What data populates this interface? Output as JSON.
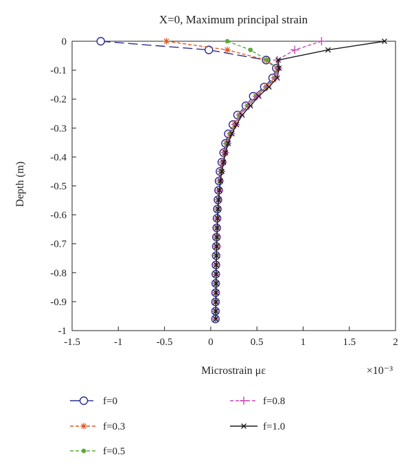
{
  "chart_data": {
    "type": "line",
    "title": "X=0, Maximum principal strain",
    "xlabel": "Microstrain με",
    "ylabel": "Depth (m)",
    "x_multiplier": "×10⁻³",
    "xlim": [
      -1.5,
      2
    ],
    "ylim": [
      -1,
      0
    ],
    "xticks": [
      -1.5,
      -1,
      -0.5,
      0,
      0.5,
      1,
      1.5,
      2
    ],
    "xtick_labels": [
      "-1.5",
      "-1",
      "-0.5",
      "0",
      "0.5",
      "1",
      "1.5",
      "2"
    ],
    "yticks": [
      0,
      -0.1,
      -0.2,
      -0.3,
      -0.4,
      -0.5,
      -0.6,
      -0.7,
      -0.8,
      -0.9,
      -1
    ],
    "ytick_labels": [
      "0",
      "-0.1",
      "-0.2",
      "-0.3",
      "-0.4",
      "-0.5",
      "-0.6",
      "-0.7",
      "-0.8",
      "-0.9",
      "-1"
    ],
    "grid": false,
    "legend_position": "bottom",
    "series": [
      {
        "name": "f=0",
        "color": "#2b2b8f",
        "marker": "circle",
        "dash": "long-dash",
        "points": [
          [
            -1.19,
            0
          ],
          [
            -0.02,
            -0.03
          ],
          [
            0.6,
            -0.065
          ],
          [
            0.71,
            -0.093
          ],
          [
            0.67,
            -0.127
          ],
          [
            0.58,
            -0.158
          ],
          [
            0.46,
            -0.19
          ],
          [
            0.38,
            -0.223
          ],
          [
            0.29,
            -0.255
          ],
          [
            0.24,
            -0.288
          ],
          [
            0.19,
            -0.32
          ],
          [
            0.16,
            -0.353
          ],
          [
            0.14,
            -0.385
          ],
          [
            0.12,
            -0.418
          ],
          [
            0.1,
            -0.45
          ],
          [
            0.09,
            -0.483
          ],
          [
            0.085,
            -0.515
          ],
          [
            0.078,
            -0.548
          ],
          [
            0.072,
            -0.58
          ],
          [
            0.068,
            -0.612
          ],
          [
            0.065,
            -0.645
          ],
          [
            0.062,
            -0.677
          ],
          [
            0.06,
            -0.709
          ],
          [
            0.058,
            -0.741
          ],
          [
            0.056,
            -0.773
          ],
          [
            0.055,
            -0.805
          ],
          [
            0.054,
            -0.837
          ],
          [
            0.053,
            -0.869
          ],
          [
            0.052,
            -0.901
          ],
          [
            0.052,
            -0.933
          ],
          [
            0.051,
            -0.96
          ]
        ]
      },
      {
        "name": "f=0.3",
        "color": "#e2571e",
        "marker": "star",
        "dash": "short-dash",
        "points": [
          [
            -0.48,
            0
          ],
          [
            0.18,
            -0.03
          ],
          [
            0.6,
            -0.065
          ],
          [
            0.72,
            -0.093
          ],
          [
            0.69,
            -0.127
          ],
          [
            0.6,
            -0.158
          ],
          [
            0.49,
            -0.19
          ],
          [
            0.4,
            -0.223
          ],
          [
            0.31,
            -0.255
          ],
          [
            0.26,
            -0.288
          ],
          [
            0.21,
            -0.32
          ],
          [
            0.17,
            -0.353
          ],
          [
            0.15,
            -0.385
          ],
          [
            0.13,
            -0.418
          ],
          [
            0.11,
            -0.45
          ],
          [
            0.1,
            -0.483
          ],
          [
            0.09,
            -0.515
          ],
          [
            0.082,
            -0.548
          ],
          [
            0.076,
            -0.58
          ],
          [
            0.071,
            -0.612
          ],
          [
            0.067,
            -0.645
          ],
          [
            0.064,
            -0.677
          ],
          [
            0.062,
            -0.709
          ],
          [
            0.06,
            -0.741
          ],
          [
            0.058,
            -0.773
          ],
          [
            0.057,
            -0.805
          ],
          [
            0.056,
            -0.837
          ],
          [
            0.055,
            -0.869
          ],
          [
            0.054,
            -0.901
          ],
          [
            0.053,
            -0.933
          ],
          [
            0.052,
            -0.96
          ]
        ]
      },
      {
        "name": "f=0.5",
        "color": "#5aaa3c",
        "marker": "dot",
        "dash": "short-dash",
        "points": [
          [
            0.18,
            0
          ],
          [
            0.43,
            -0.03
          ],
          [
            0.61,
            -0.065
          ],
          [
            0.72,
            -0.093
          ],
          [
            0.69,
            -0.127
          ],
          [
            0.6,
            -0.158
          ],
          [
            0.49,
            -0.19
          ],
          [
            0.4,
            -0.223
          ],
          [
            0.31,
            -0.255
          ],
          [
            0.26,
            -0.288
          ],
          [
            0.21,
            -0.32
          ],
          [
            0.17,
            -0.353
          ],
          [
            0.15,
            -0.385
          ],
          [
            0.13,
            -0.418
          ],
          [
            0.11,
            -0.45
          ],
          [
            0.1,
            -0.483
          ],
          [
            0.09,
            -0.515
          ],
          [
            0.082,
            -0.548
          ],
          [
            0.076,
            -0.58
          ],
          [
            0.071,
            -0.612
          ],
          [
            0.067,
            -0.645
          ],
          [
            0.064,
            -0.677
          ],
          [
            0.062,
            -0.709
          ],
          [
            0.06,
            -0.741
          ],
          [
            0.058,
            -0.773
          ],
          [
            0.057,
            -0.805
          ],
          [
            0.056,
            -0.837
          ],
          [
            0.055,
            -0.869
          ],
          [
            0.054,
            -0.901
          ],
          [
            0.053,
            -0.933
          ],
          [
            0.052,
            -0.96
          ]
        ]
      },
      {
        "name": "f=0.8",
        "color": "#c646b8",
        "marker": "plus",
        "dash": "short-dash",
        "points": [
          [
            1.2,
            0
          ],
          [
            0.91,
            -0.03
          ],
          [
            0.72,
            -0.065
          ],
          [
            0.73,
            -0.093
          ],
          [
            0.7,
            -0.127
          ],
          [
            0.61,
            -0.158
          ],
          [
            0.5,
            -0.19
          ],
          [
            0.41,
            -0.223
          ],
          [
            0.32,
            -0.255
          ],
          [
            0.27,
            -0.288
          ],
          [
            0.22,
            -0.32
          ],
          [
            0.18,
            -0.353
          ],
          [
            0.155,
            -0.385
          ],
          [
            0.135,
            -0.418
          ],
          [
            0.115,
            -0.45
          ],
          [
            0.1,
            -0.483
          ],
          [
            0.092,
            -0.515
          ],
          [
            0.084,
            -0.548
          ],
          [
            0.078,
            -0.58
          ],
          [
            0.073,
            -0.612
          ],
          [
            0.069,
            -0.645
          ],
          [
            0.066,
            -0.677
          ],
          [
            0.064,
            -0.709
          ],
          [
            0.062,
            -0.741
          ],
          [
            0.06,
            -0.773
          ],
          [
            0.059,
            -0.805
          ],
          [
            0.058,
            -0.837
          ],
          [
            0.057,
            -0.869
          ],
          [
            0.056,
            -0.901
          ],
          [
            0.055,
            -0.933
          ],
          [
            0.054,
            -0.96
          ]
        ]
      },
      {
        "name": "f=1.0",
        "color": "#1a1a1a",
        "marker": "x",
        "dash": "solid",
        "points": [
          [
            1.88,
            0
          ],
          [
            1.27,
            -0.03
          ],
          [
            0.73,
            -0.065
          ],
          [
            0.74,
            -0.093
          ],
          [
            0.72,
            -0.127
          ],
          [
            0.63,
            -0.158
          ],
          [
            0.52,
            -0.19
          ],
          [
            0.43,
            -0.223
          ],
          [
            0.34,
            -0.255
          ],
          [
            0.28,
            -0.288
          ],
          [
            0.23,
            -0.32
          ],
          [
            0.19,
            -0.353
          ],
          [
            0.16,
            -0.385
          ],
          [
            0.14,
            -0.418
          ],
          [
            0.12,
            -0.45
          ],
          [
            0.105,
            -0.483
          ],
          [
            0.095,
            -0.515
          ],
          [
            0.087,
            -0.548
          ],
          [
            0.08,
            -0.58
          ],
          [
            0.075,
            -0.612
          ],
          [
            0.071,
            -0.645
          ],
          [
            0.068,
            -0.677
          ],
          [
            0.065,
            -0.709
          ],
          [
            0.063,
            -0.741
          ],
          [
            0.061,
            -0.773
          ],
          [
            0.06,
            -0.805
          ],
          [
            0.059,
            -0.837
          ],
          [
            0.058,
            -0.869
          ],
          [
            0.057,
            -0.901
          ],
          [
            0.056,
            -0.933
          ],
          [
            0.055,
            -0.96
          ]
        ]
      }
    ]
  }
}
